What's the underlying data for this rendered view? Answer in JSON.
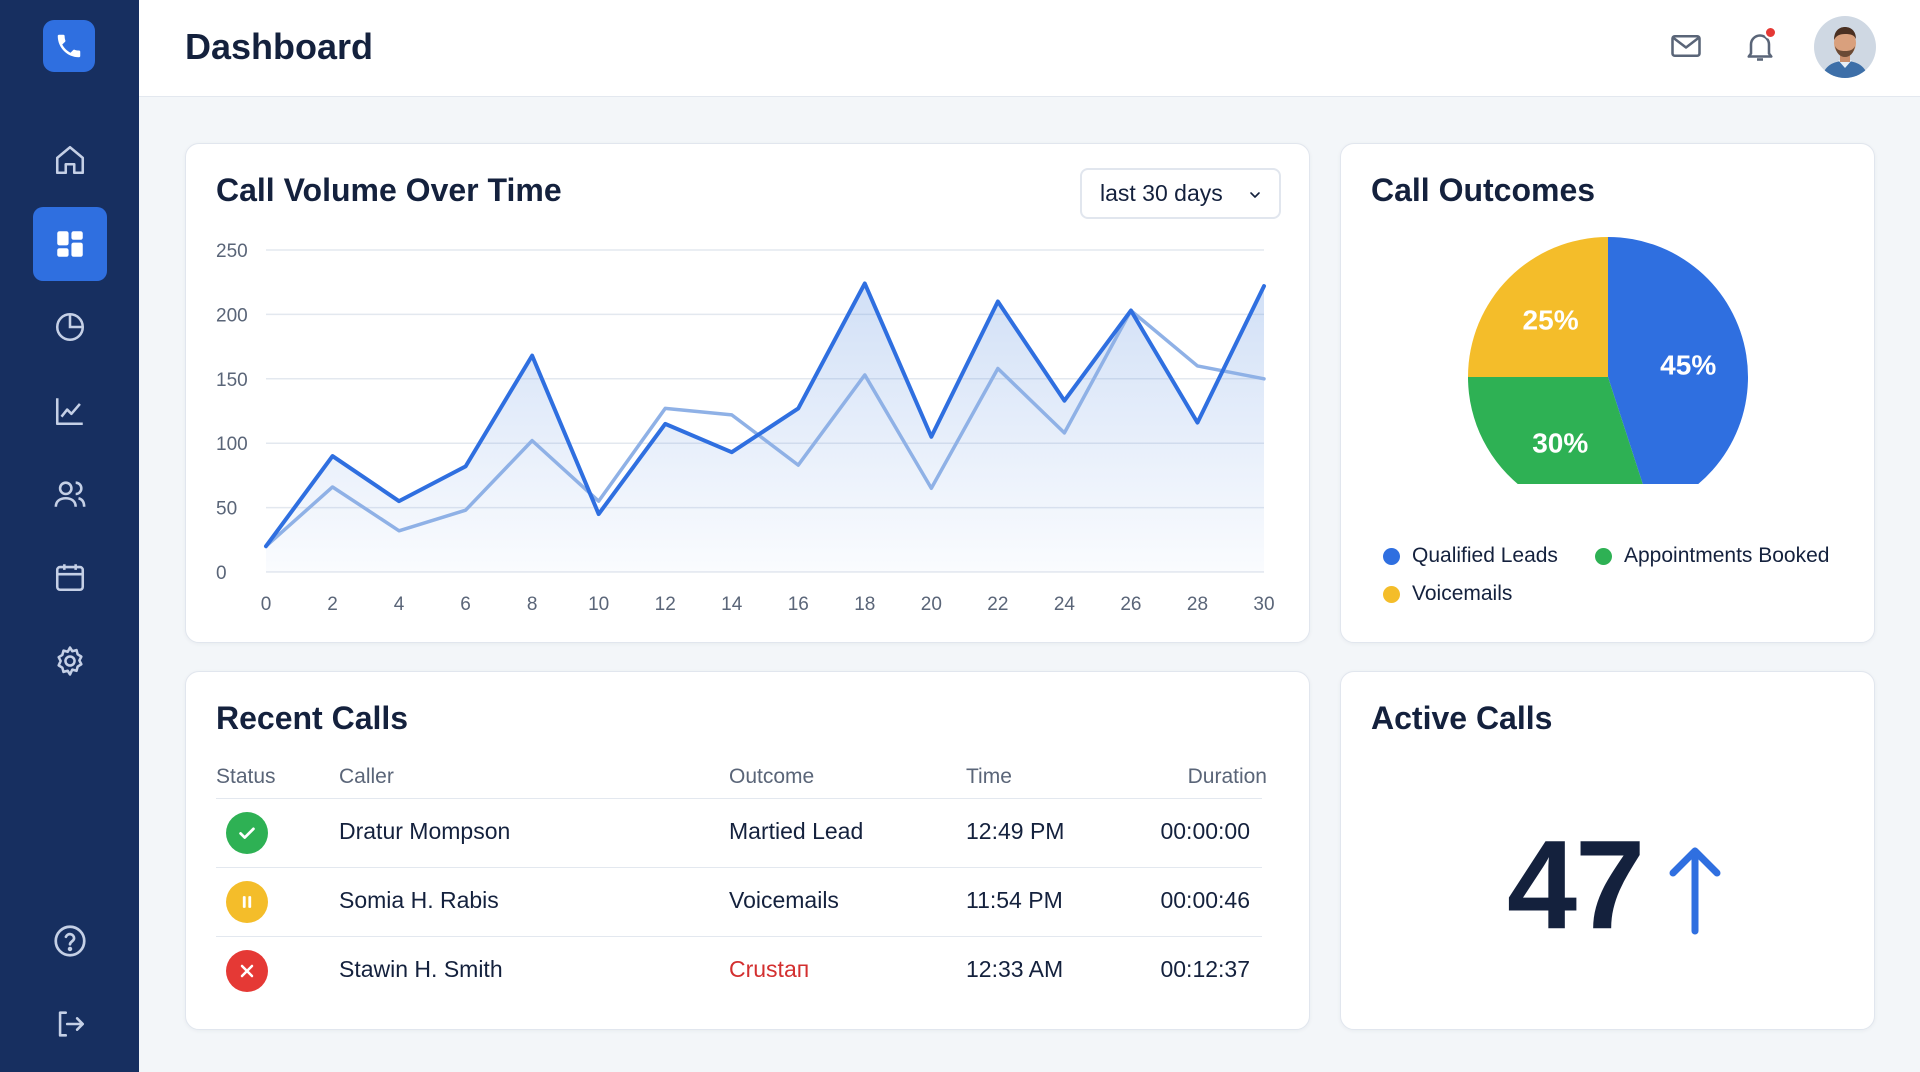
{
  "header": {
    "title": "Dashboard"
  },
  "call_volume": {
    "title": "Call Volume Over Time",
    "range_label": "last 30 days"
  },
  "call_outcomes": {
    "title": "Call Outcomes",
    "legend": [
      "Qualified Leads",
      "Appointments Booked",
      "Voicemails"
    ]
  },
  "recent_calls": {
    "title": "Recent Calls",
    "columns": [
      "Status",
      "Caller",
      "Outcome",
      "Time",
      "Duration"
    ],
    "rows": [
      {
        "status": "success",
        "caller": "Dratur Mompson",
        "outcome": "Martied Lead",
        "time": "12:49 PM",
        "duration": "00:00:00",
        "outcome_color": "#14213d"
      },
      {
        "status": "paused",
        "caller": "Somia H. Rabis",
        "outcome": "Voicemails",
        "time": "11:54 PM",
        "duration": "00:00:46",
        "outcome_color": "#14213d"
      },
      {
        "status": "failed",
        "caller": "Stawin H. Smith",
        "outcome": "Crustaп",
        "time": "12:33 AM",
        "duration": "00:12:37",
        "outcome_color": "#d32f2f"
      }
    ]
  },
  "active_calls": {
    "title": "Active Calls",
    "value": "47"
  },
  "colors": {
    "sidebar": "#172f60",
    "accent": "#2f6fe0",
    "blue": "#2f6fe0",
    "green": "#2eb154",
    "yellow": "#f4bd2a",
    "red": "#e53935"
  },
  "chart_data": [
    {
      "type": "line",
      "x": [
        0,
        2,
        4,
        6,
        8,
        10,
        12,
        14,
        16,
        18,
        20,
        22,
        24,
        26,
        28,
        30
      ],
      "xticks": [
        0,
        2,
        4,
        6,
        8,
        10,
        12,
        14,
        16,
        18,
        20,
        22,
        24,
        26,
        28,
        30
      ],
      "yticks": [
        0,
        50,
        100,
        150,
        200,
        250
      ],
      "ylim": [
        0,
        250
      ],
      "xlim": [
        0,
        30
      ],
      "grid": true,
      "series": [
        {
          "values": [
            20,
            90,
            55,
            82,
            168,
            45,
            115,
            93,
            127,
            224,
            105,
            210,
            133,
            203,
            116,
            222
          ],
          "color": "#2f6fe0"
        },
        {
          "values": [
            20,
            66,
            32,
            48,
            102,
            55,
            127,
            122,
            83,
            153,
            65,
            158,
            108,
            203,
            160,
            150
          ],
          "color": "#8fb1e6"
        }
      ]
    },
    {
      "type": "pie",
      "labels": [
        "Qualified Leads",
        "Appointments Booked",
        "Voicemails"
      ],
      "values": [
        45,
        30,
        25
      ],
      "value_labels": [
        "45%",
        "30%",
        "25%"
      ],
      "colors": [
        "#2f6fe0",
        "#2eb154",
        "#f4bd2a"
      ]
    }
  ]
}
